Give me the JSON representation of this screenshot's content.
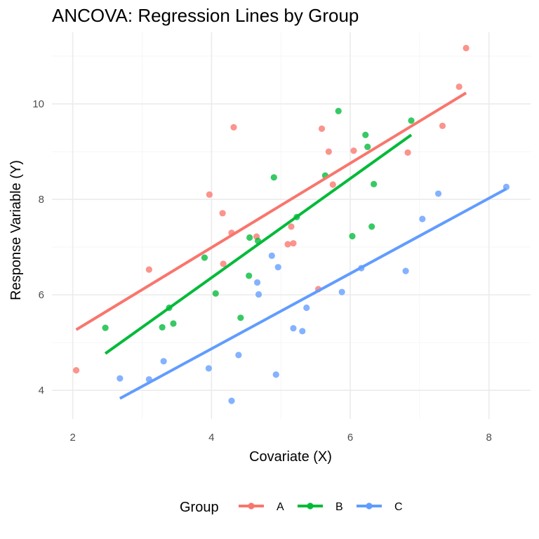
{
  "chart_data": {
    "type": "scatter",
    "title": "ANCOVA: Regression Lines by Group",
    "xlabel": "Covariate (X)",
    "ylabel": "Response Variable (Y)",
    "xlim": [
      1.7,
      8.6
    ],
    "ylim": [
      3.4,
      11.5
    ],
    "x_ticks": [
      2,
      4,
      6,
      8
    ],
    "y_ticks": [
      4,
      6,
      8,
      10
    ],
    "grid": true,
    "legend": {
      "title": "Group",
      "position": "bottom"
    },
    "series": [
      {
        "name": "A",
        "color": "#F8766D",
        "points": [
          [
            2.05,
            4.42
          ],
          [
            3.1,
            6.53
          ],
          [
            3.97,
            8.1
          ],
          [
            4.16,
            7.71
          ],
          [
            4.17,
            6.65
          ],
          [
            4.29,
            7.3
          ],
          [
            4.32,
            9.51
          ],
          [
            4.65,
            7.22
          ],
          [
            5.1,
            7.06
          ],
          [
            5.15,
            7.43
          ],
          [
            5.18,
            7.08
          ],
          [
            5.54,
            6.12
          ],
          [
            5.59,
            9.48
          ],
          [
            5.69,
            9.0
          ],
          [
            5.75,
            8.31
          ],
          [
            6.05,
            9.02
          ],
          [
            6.83,
            8.98
          ],
          [
            7.33,
            9.54
          ],
          [
            7.57,
            10.36
          ],
          [
            7.67,
            11.17
          ]
        ],
        "line": {
          "x": [
            2.05,
            7.67
          ],
          "y": [
            5.27,
            10.23
          ]
        }
      },
      {
        "name": "B",
        "color": "#00BA38",
        "points": [
          [
            2.47,
            5.31
          ],
          [
            3.29,
            5.32
          ],
          [
            3.39,
            5.73
          ],
          [
            3.45,
            5.4
          ],
          [
            3.9,
            6.78
          ],
          [
            4.06,
            6.03
          ],
          [
            4.42,
            5.52
          ],
          [
            4.54,
            6.4
          ],
          [
            4.55,
            7.2
          ],
          [
            4.67,
            7.13
          ],
          [
            4.9,
            8.46
          ],
          [
            5.23,
            7.63
          ],
          [
            5.64,
            8.5
          ],
          [
            5.83,
            9.85
          ],
          [
            6.03,
            7.23
          ],
          [
            6.22,
            9.35
          ],
          [
            6.25,
            9.1
          ],
          [
            6.31,
            7.43
          ],
          [
            6.34,
            8.32
          ],
          [
            6.88,
            9.65
          ]
        ],
        "line": {
          "x": [
            2.47,
            6.88
          ],
          "y": [
            4.77,
            9.35
          ]
        }
      },
      {
        "name": "C",
        "color": "#619CFF",
        "points": [
          [
            2.68,
            4.25
          ],
          [
            3.1,
            4.23
          ],
          [
            3.31,
            4.61
          ],
          [
            3.96,
            4.46
          ],
          [
            4.29,
            3.78
          ],
          [
            4.39,
            4.74
          ],
          [
            4.66,
            6.26
          ],
          [
            4.68,
            6.01
          ],
          [
            4.87,
            6.82
          ],
          [
            4.93,
            4.33
          ],
          [
            4.96,
            6.58
          ],
          [
            5.18,
            5.3
          ],
          [
            5.31,
            5.24
          ],
          [
            5.37,
            5.73
          ],
          [
            5.88,
            6.06
          ],
          [
            6.16,
            6.56
          ],
          [
            6.8,
            6.5
          ],
          [
            7.04,
            7.59
          ],
          [
            7.27,
            8.12
          ],
          [
            8.25,
            8.26
          ]
        ],
        "line": {
          "x": [
            2.68,
            8.25
          ],
          "y": [
            3.83,
            8.22
          ]
        }
      }
    ]
  }
}
